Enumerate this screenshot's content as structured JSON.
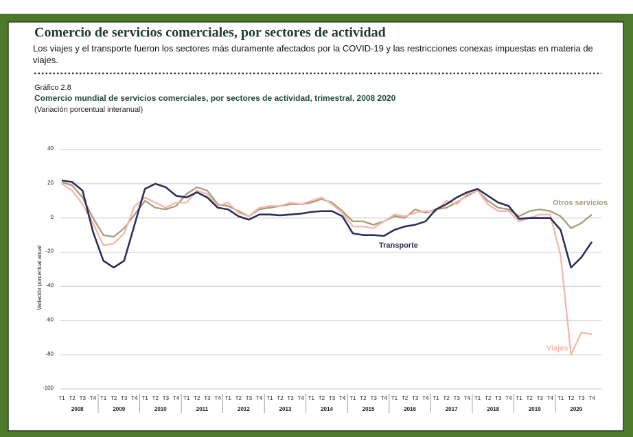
{
  "chart_data": {
    "type": "line",
    "header": "Comercio de servicios comerciales, por sectores de actividad",
    "subheader": "Los viajes y el transporte fueron los sectores más duramente afectados por la COVID-19 y las restricciones conexas impuestas en materia de viajes.",
    "figure_number": "Gráfico 2.8",
    "title": "Comercio mundial de servicios comerciales, por sectores de actividad, trimestral, 2008 2020",
    "subtitle": "(Variación porcentual interanual)",
    "ylabel": "Variación porcentual anual",
    "categories": [
      "T1",
      "T2",
      "T3",
      "T4",
      "T1",
      "T2",
      "T3",
      "T4",
      "T1",
      "T2",
      "T3",
      "T4",
      "T1",
      "T2",
      "T3",
      "T4",
      "T1",
      "T2",
      "T3",
      "T4",
      "T1",
      "T2",
      "T3",
      "T4",
      "T1",
      "T2",
      "T3",
      "T4",
      "T1",
      "T2",
      "T3",
      "T4",
      "T1",
      "T2",
      "T3",
      "T4",
      "T1",
      "T2",
      "T3",
      "T4",
      "T1",
      "T2",
      "T3",
      "T4",
      "T1",
      "T2",
      "T3",
      "T4",
      "T1",
      "T2",
      "T3",
      "T4"
    ],
    "years": [
      "2008",
      "2009",
      "2010",
      "2011",
      "2012",
      "2013",
      "2014",
      "2015",
      "2016",
      "2017",
      "2018",
      "2019",
      "2020"
    ],
    "ylim": [
      -100,
      40
    ],
    "yticks": [
      40,
      20,
      0,
      -20,
      -40,
      -60,
      -80,
      -100
    ],
    "grid": true,
    "series": [
      {
        "name": "Otros servicios",
        "color": "#a89f7a",
        "values": [
          21,
          19,
          12,
          0,
          -10,
          -11,
          -6,
          2,
          10,
          6,
          5,
          7,
          14,
          18,
          16,
          8,
          7,
          4,
          1,
          5,
          6,
          7,
          8,
          8,
          9,
          11,
          9,
          4,
          -2,
          -2,
          -4,
          -2,
          1,
          0,
          5,
          3,
          5,
          6,
          9,
          13,
          16,
          10,
          6,
          5,
          1,
          4,
          5,
          4,
          1,
          -6,
          -3,
          2
        ]
      },
      {
        "name": "Viajes",
        "color": "#f5b8b0",
        "values": [
          20,
          16,
          8,
          -3,
          -16,
          -15,
          -9,
          7,
          12,
          9,
          6,
          9,
          9,
          16,
          14,
          7,
          9,
          3,
          1,
          6,
          7,
          7,
          9,
          8,
          10,
          12,
          8,
          3,
          -5,
          -5,
          -6,
          -2,
          2,
          1,
          3,
          4,
          4,
          10,
          8,
          14,
          16,
          8,
          4,
          4,
          -2,
          0,
          2,
          2,
          -22,
          -80,
          -67,
          -68
        ]
      },
      {
        "name": "Transporte",
        "color": "#2b2d5a",
        "values": [
          22,
          21,
          16,
          -8,
          -25,
          -29,
          -25,
          -4,
          17,
          20,
          18,
          13,
          12,
          15,
          12,
          6,
          5,
          1,
          -1,
          2,
          2,
          1.5,
          2,
          2.5,
          3.5,
          4,
          4,
          1,
          -9,
          -10,
          -10,
          -10.5,
          -7,
          -5,
          -4,
          -2,
          5,
          8,
          12,
          15,
          17,
          13,
          9,
          7,
          -0.5,
          0,
          0,
          0,
          -7,
          -29,
          -23,
          -14
        ]
      }
    ]
  }
}
